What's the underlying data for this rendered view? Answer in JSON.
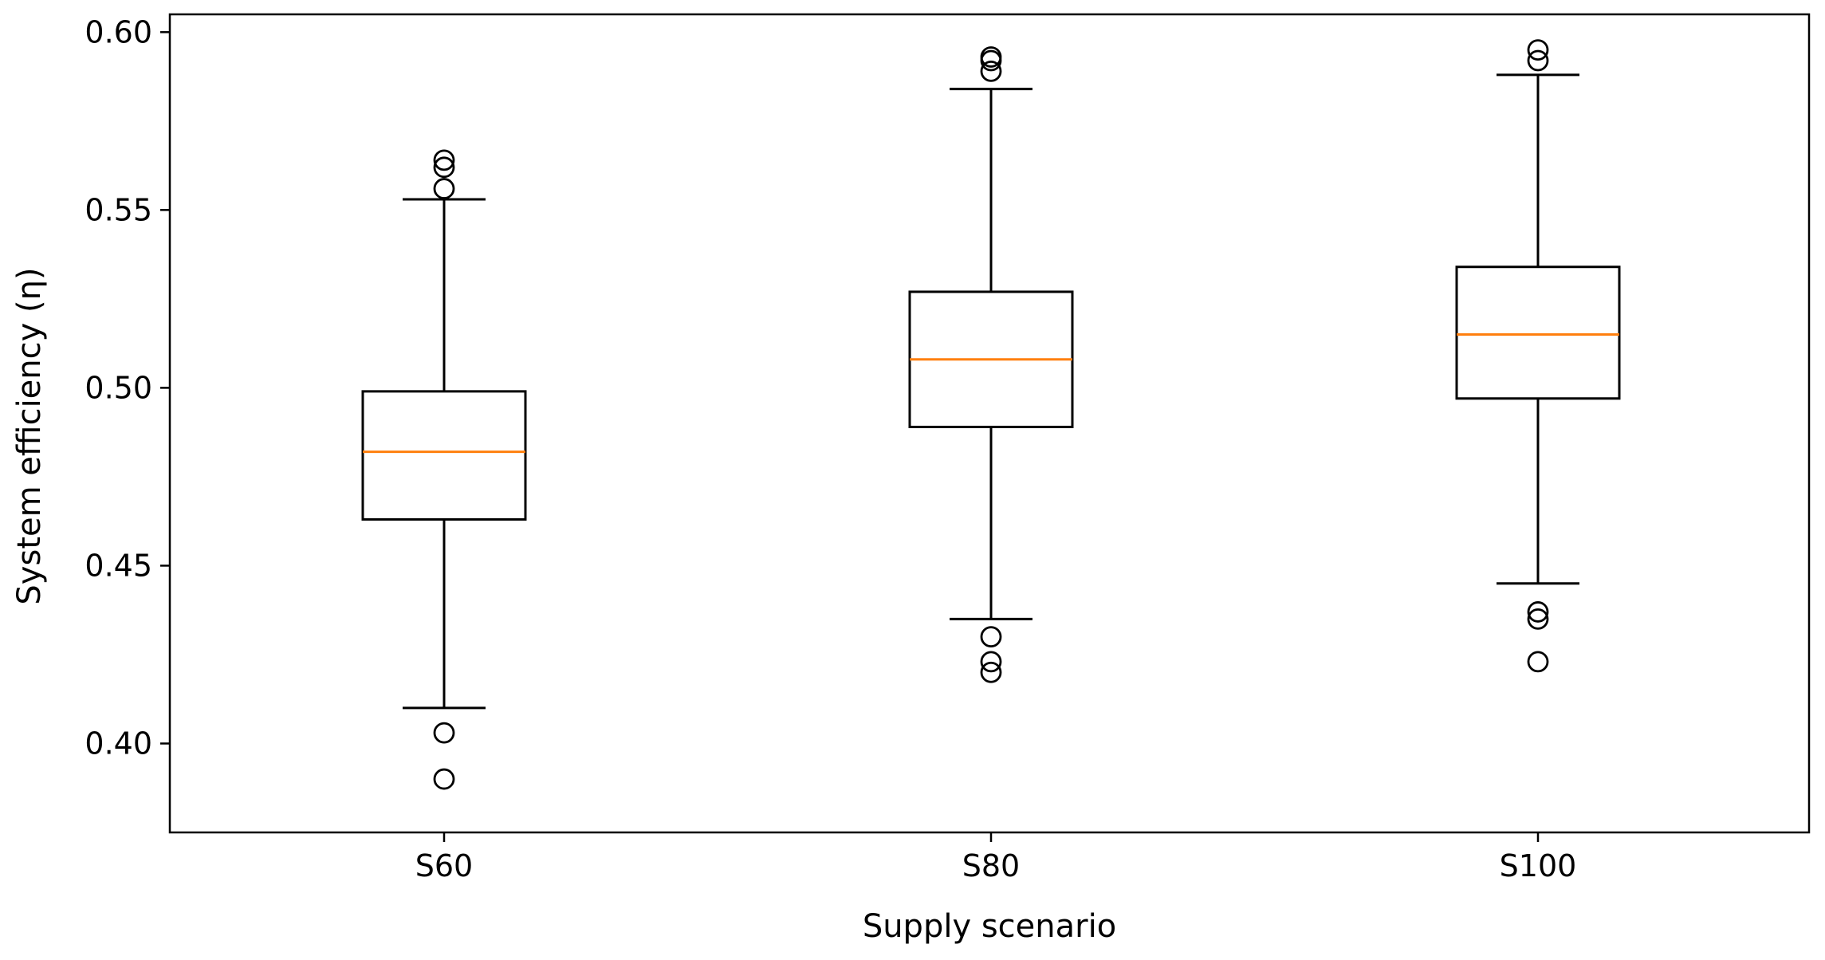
{
  "chart_data": {
    "type": "box",
    "title": "",
    "xlabel": "Supply scenario",
    "ylabel": "System efficiency (η)",
    "categories": [
      "S60",
      "S80",
      "S100"
    ],
    "ylim": [
      0.375,
      0.605
    ],
    "yticks": [
      0.4,
      0.45,
      0.5,
      0.55,
      0.6
    ],
    "ytick_labels": [
      "0.40",
      "0.45",
      "0.50",
      "0.55",
      "0.60"
    ],
    "grid": false,
    "colors": {
      "box": "#000000",
      "median": "#ff7f0e"
    },
    "boxes": [
      {
        "name": "S60",
        "whisker_low": 0.41,
        "q1": 0.463,
        "median": 0.482,
        "q3": 0.499,
        "whisker_high": 0.553,
        "outliers": [
          0.564,
          0.562,
          0.556,
          0.403,
          0.39
        ]
      },
      {
        "name": "S80",
        "whisker_low": 0.435,
        "q1": 0.489,
        "median": 0.508,
        "q3": 0.527,
        "whisker_high": 0.584,
        "outliers": [
          0.593,
          0.592,
          0.589,
          0.43,
          0.423,
          0.42
        ]
      },
      {
        "name": "S100",
        "whisker_low": 0.445,
        "q1": 0.497,
        "median": 0.515,
        "q3": 0.534,
        "whisker_high": 0.588,
        "outliers": [
          0.595,
          0.592,
          0.437,
          0.435,
          0.423
        ]
      }
    ]
  }
}
